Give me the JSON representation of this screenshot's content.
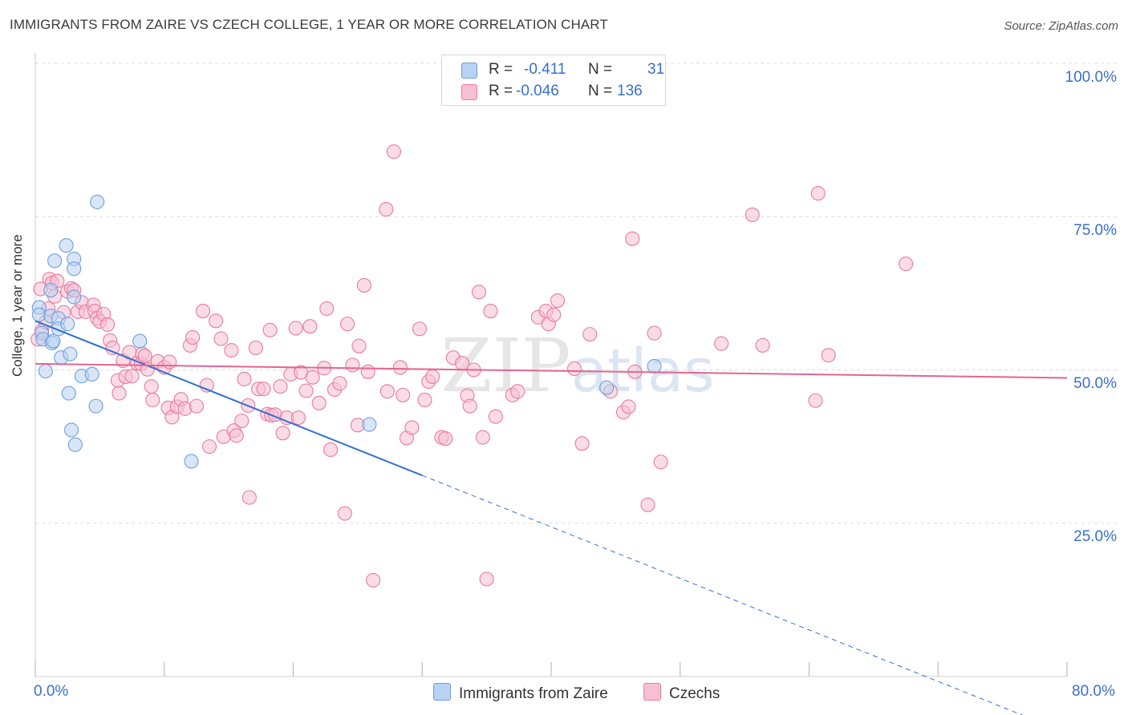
{
  "title": "IMMIGRANTS FROM ZAIRE VS CZECH COLLEGE, 1 YEAR OR MORE CORRELATION CHART",
  "source": "Source: ZipAtlas.com",
  "watermark": "ZIPatlas",
  "legend": {
    "row1": {
      "r_label": "R =",
      "r_value": "-0.411",
      "n_label": "N =",
      "n_value": "31"
    },
    "row2": {
      "r_label": "R =",
      "r_value": "-0.046",
      "n_label": "N =",
      "n_value": "136"
    }
  },
  "colors": {
    "blue": "#6f9fdc",
    "blue_fill": "#b8d2f3",
    "pink": "#e97aa0",
    "pink_fill": "#f7bfd2",
    "blue_line": "#2f6fd6",
    "pink_line": "#e4658f",
    "tick_text": "#3a6fcc"
  },
  "chart_data": {
    "type": "scatter",
    "title": "IMMIGRANTS FROM ZAIRE VS CZECH COLLEGE, 1 YEAR OR MORE CORRELATION CHART",
    "xlabel": "",
    "ylabel": "College, 1 year or more",
    "xlim": [
      0,
      80
    ],
    "ylim": [
      0,
      100
    ],
    "x_tick_labels": [
      "0.0%",
      "80.0%"
    ],
    "y_tick_labels": [
      "100.0%",
      "75.0%",
      "50.0%",
      "25.0%"
    ],
    "y_ticks": [
      100,
      75,
      50,
      25
    ],
    "grid": true,
    "legend_position": "top-center",
    "series": [
      {
        "name": "Immigrants from Zaire",
        "color": "#6f9fdc",
        "R": -0.411,
        "N": 31,
        "trend": {
          "x0": 0,
          "y0": 58.0,
          "x1": 30,
          "y1": 32.8,
          "dashed_to_x": 80
        },
        "points": [
          [
            0.3,
            60.2
          ],
          [
            0.3,
            59.0
          ],
          [
            0.5,
            56.0
          ],
          [
            0.6,
            55.0
          ],
          [
            1.2,
            58.8
          ],
          [
            1.3,
            54.4
          ],
          [
            1.5,
            67.8
          ],
          [
            0.8,
            49.8
          ],
          [
            1.2,
            63.0
          ],
          [
            1.4,
            54.7
          ],
          [
            1.8,
            58.4
          ],
          [
            1.8,
            56.7
          ],
          [
            2.0,
            52.0
          ],
          [
            2.4,
            70.3
          ],
          [
            2.5,
            57.5
          ],
          [
            2.6,
            46.2
          ],
          [
            2.7,
            52.6
          ],
          [
            2.8,
            40.2
          ],
          [
            3.0,
            68.1
          ],
          [
            3.0,
            61.9
          ],
          [
            3.0,
            66.5
          ],
          [
            3.1,
            37.8
          ],
          [
            3.6,
            49.0
          ],
          [
            4.4,
            49.3
          ],
          [
            4.7,
            44.1
          ],
          [
            4.8,
            77.4
          ],
          [
            8.1,
            54.7
          ],
          [
            12.1,
            35.1
          ],
          [
            25.9,
            41.1
          ],
          [
            44.3,
            47.1
          ],
          [
            48.0,
            50.6
          ]
        ]
      },
      {
        "name": "Czechs",
        "color": "#e97aa0",
        "R": -0.046,
        "N": 136,
        "trend": {
          "x0": 0,
          "y0": 51.0,
          "x1": 80,
          "y1": 48.7
        },
        "points": [
          [
            0.2,
            55.0
          ],
          [
            0.4,
            63.2
          ],
          [
            0.5,
            56.4
          ],
          [
            0.8,
            57.8
          ],
          [
            1.0,
            60.0
          ],
          [
            1.1,
            64.8
          ],
          [
            1.3,
            64.2
          ],
          [
            1.5,
            62.0
          ],
          [
            1.7,
            64.5
          ],
          [
            2.2,
            59.4
          ],
          [
            2.5,
            62.8
          ],
          [
            2.8,
            63.3
          ],
          [
            3.0,
            63.0
          ],
          [
            3.3,
            59.5
          ],
          [
            3.6,
            61.0
          ],
          [
            3.9,
            59.5
          ],
          [
            4.5,
            60.6
          ],
          [
            4.6,
            59.6
          ],
          [
            4.8,
            58.4
          ],
          [
            5.0,
            57.9
          ],
          [
            5.3,
            59.1
          ],
          [
            5.6,
            57.4
          ],
          [
            5.8,
            54.8
          ],
          [
            6.0,
            53.6
          ],
          [
            6.4,
            48.3
          ],
          [
            6.5,
            46.2
          ],
          [
            6.8,
            51.5
          ],
          [
            7.0,
            48.9
          ],
          [
            7.3,
            52.9
          ],
          [
            7.5,
            49.0
          ],
          [
            7.9,
            51.1
          ],
          [
            8.2,
            51.0
          ],
          [
            8.3,
            52.6
          ],
          [
            8.5,
            52.3
          ],
          [
            8.7,
            50.1
          ],
          [
            9.0,
            47.3
          ],
          [
            9.1,
            45.1
          ],
          [
            9.5,
            51.4
          ],
          [
            10.0,
            50.4
          ],
          [
            10.3,
            43.8
          ],
          [
            10.4,
            51.3
          ],
          [
            10.6,
            42.3
          ],
          [
            11.0,
            44.0
          ],
          [
            11.3,
            45.2
          ],
          [
            11.6,
            43.7
          ],
          [
            12.0,
            54.0
          ],
          [
            12.2,
            55.3
          ],
          [
            12.5,
            44.1
          ],
          [
            13.0,
            59.6
          ],
          [
            13.3,
            47.5
          ],
          [
            13.5,
            37.5
          ],
          [
            14.0,
            58.0
          ],
          [
            14.4,
            55.1
          ],
          [
            14.6,
            39.1
          ],
          [
            15.2,
            53.2
          ],
          [
            15.4,
            40.1
          ],
          [
            15.6,
            39.3
          ],
          [
            16.0,
            41.7
          ],
          [
            16.2,
            48.5
          ],
          [
            16.5,
            44.2
          ],
          [
            16.6,
            29.2
          ],
          [
            17.1,
            53.6
          ],
          [
            17.3,
            46.9
          ],
          [
            17.7,
            46.9
          ],
          [
            18.0,
            42.8
          ],
          [
            18.2,
            56.5
          ],
          [
            18.3,
            42.6
          ],
          [
            18.6,
            42.7
          ],
          [
            19.0,
            47.3
          ],
          [
            19.2,
            39.7
          ],
          [
            19.5,
            42.2
          ],
          [
            19.8,
            49.3
          ],
          [
            20.2,
            56.8
          ],
          [
            20.4,
            42.2
          ],
          [
            20.6,
            49.6
          ],
          [
            21.0,
            46.6
          ],
          [
            21.3,
            57.1
          ],
          [
            21.5,
            48.8
          ],
          [
            22.0,
            44.6
          ],
          [
            22.4,
            50.3
          ],
          [
            22.6,
            60.0
          ],
          [
            22.9,
            37.0
          ],
          [
            23.2,
            46.8
          ],
          [
            23.6,
            47.8
          ],
          [
            24.0,
            26.6
          ],
          [
            24.2,
            57.5
          ],
          [
            24.6,
            50.8
          ],
          [
            25.0,
            41.0
          ],
          [
            25.1,
            53.9
          ],
          [
            25.5,
            63.8
          ],
          [
            25.8,
            49.7
          ],
          [
            26.2,
            15.7
          ],
          [
            27.2,
            76.2
          ],
          [
            27.3,
            46.5
          ],
          [
            27.8,
            85.6
          ],
          [
            28.3,
            50.4
          ],
          [
            28.5,
            45.9
          ],
          [
            28.8,
            38.9
          ],
          [
            29.2,
            40.6
          ],
          [
            29.8,
            56.7
          ],
          [
            30.2,
            45.1
          ],
          [
            30.5,
            48.1
          ],
          [
            30.8,
            48.9
          ],
          [
            31.5,
            39.0
          ],
          [
            31.8,
            38.8
          ],
          [
            32.4,
            52.0
          ],
          [
            33.1,
            51.1
          ],
          [
            33.5,
            45.8
          ],
          [
            33.7,
            44.1
          ],
          [
            34.0,
            50.0
          ],
          [
            34.4,
            62.7
          ],
          [
            34.7,
            39.0
          ],
          [
            35.0,
            15.9
          ],
          [
            35.3,
            59.6
          ],
          [
            35.7,
            42.4
          ],
          [
            37.0,
            45.9
          ],
          [
            37.4,
            46.5
          ],
          [
            39.0,
            58.6
          ],
          [
            39.6,
            59.6
          ],
          [
            39.8,
            57.5
          ],
          [
            40.2,
            59.0
          ],
          [
            40.5,
            61.3
          ],
          [
            41.8,
            50.2
          ],
          [
            42.4,
            38.0
          ],
          [
            43.0,
            55.8
          ],
          [
            44.6,
            46.5
          ],
          [
            45.6,
            43.1
          ],
          [
            46.0,
            44.0
          ],
          [
            46.3,
            71.4
          ],
          [
            46.5,
            49.7
          ],
          [
            47.5,
            28.0
          ],
          [
            48.0,
            56.0
          ],
          [
            48.5,
            35.0
          ],
          [
            53.2,
            54.3
          ],
          [
            55.6,
            75.3
          ],
          [
            56.4,
            54.0
          ],
          [
            60.5,
            45.0
          ],
          [
            60.7,
            78.8
          ],
          [
            61.5,
            52.4
          ],
          [
            67.5,
            67.3
          ]
        ]
      }
    ]
  },
  "bottom_legend": {
    "item1": "Immigrants from Zaire",
    "item2": "Czechs"
  }
}
